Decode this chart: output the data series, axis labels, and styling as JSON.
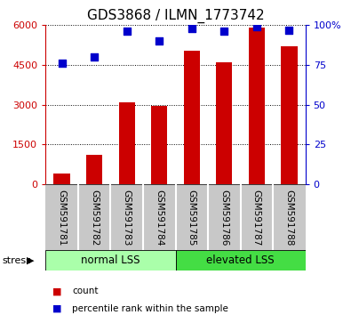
{
  "title": "GDS3868 / ILMN_1773742",
  "categories": [
    "GSM591781",
    "GSM591782",
    "GSM591783",
    "GSM591784",
    "GSM591785",
    "GSM591786",
    "GSM591787",
    "GSM591788"
  ],
  "bar_values": [
    400,
    1100,
    3100,
    2950,
    5050,
    4600,
    5900,
    5200
  ],
  "dot_values": [
    76,
    80,
    96,
    90,
    98,
    96,
    99,
    97
  ],
  "bar_color": "#cc0000",
  "dot_color": "#0000cc",
  "ylim_left": [
    0,
    6000
  ],
  "ylim_right": [
    0,
    100
  ],
  "yticks_left": [
    0,
    1500,
    3000,
    4500,
    6000
  ],
  "ytick_labels_left": [
    "0",
    "1500",
    "3000",
    "4500",
    "6000"
  ],
  "yticks_right": [
    0,
    25,
    50,
    75,
    100
  ],
  "ytick_labels_right": [
    "0",
    "25",
    "50",
    "75",
    "100%"
  ],
  "group1_label": "normal LSS",
  "group2_label": "elevated LSS",
  "group1_count": 4,
  "group2_count": 4,
  "stress_label": "stress",
  "legend_bar": "count",
  "legend_dot": "percentile rank within the sample",
  "title_fontsize": 11,
  "axis_label_color_left": "#cc0000",
  "axis_label_color_right": "#0000cc",
  "bg_color": "#ffffff",
  "tick_area_bg": "#c8c8c8",
  "group_bg_light": "#aaffaa",
  "group_bg_dark": "#44dd44",
  "bar_width": 0.5,
  "dot_size": 28
}
